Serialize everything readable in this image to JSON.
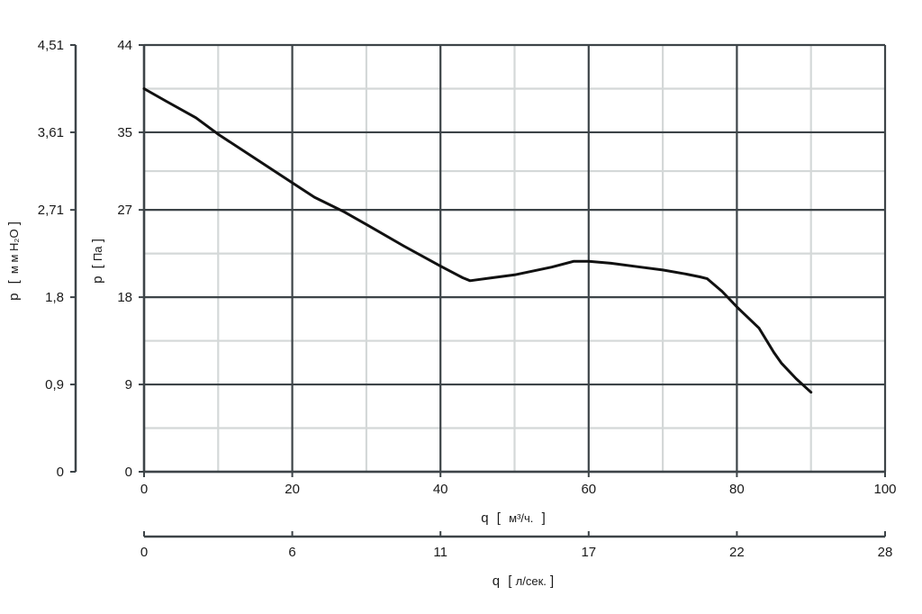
{
  "chart_data": {
    "type": "line",
    "title": "",
    "grid": true,
    "xlim": [
      0,
      100
    ],
    "ylim": [
      0,
      44
    ],
    "x_ticks": [
      "0",
      "20",
      "40",
      "60",
      "80",
      "100"
    ],
    "y_ticks": [
      "0",
      "9",
      "18",
      "27",
      "35",
      "44"
    ],
    "y_ticks_values": [
      0,
      9,
      18,
      27,
      35,
      44
    ],
    "y2_ticks": [
      "0",
      "0,9",
      "1,8",
      "2,71",
      "3,61",
      "4,51"
    ],
    "x2_ticks": [
      "0",
      "6",
      "11",
      "17",
      "22",
      "28"
    ],
    "x_minor_grid": [
      10,
      30,
      50,
      70,
      90
    ],
    "y_minor_grid": [
      4.5,
      13.5,
      22.5,
      31,
      39.5
    ],
    "xlabel": {
      "q": "q",
      "open": "[",
      "unit": "м³/ч.",
      "close": "]"
    },
    "ylabel": {
      "p": "p",
      "open": "[",
      "unit": "Па",
      "close": "]"
    },
    "y2label": {
      "p": "p",
      "open": "[",
      "unit": "м м H₂O",
      "close": "]"
    },
    "x2label": {
      "q": "q",
      "open": "[",
      "unit": "л/сек.",
      "close": "]"
    },
    "series": [
      {
        "x": [
          0,
          3,
          7,
          10,
          15,
          20,
          23,
          27,
          30,
          35,
          40,
          43,
          44,
          45,
          47,
          50,
          55,
          58,
          60,
          63,
          67,
          70,
          73,
          75,
          76,
          78,
          80,
          83,
          85,
          86,
          88,
          90
        ],
        "y": [
          39.5,
          38.2,
          36.5,
          34.8,
          32.3,
          29.8,
          28.3,
          26.8,
          25.5,
          23.3,
          21.2,
          20.0,
          19.7,
          19.8,
          20.0,
          20.3,
          21.1,
          21.7,
          21.7,
          21.5,
          21.1,
          20.8,
          20.4,
          20.1,
          19.9,
          18.6,
          17.0,
          14.8,
          12.3,
          11.2,
          9.6,
          8.2
        ],
        "color": "#111111"
      }
    ]
  }
}
